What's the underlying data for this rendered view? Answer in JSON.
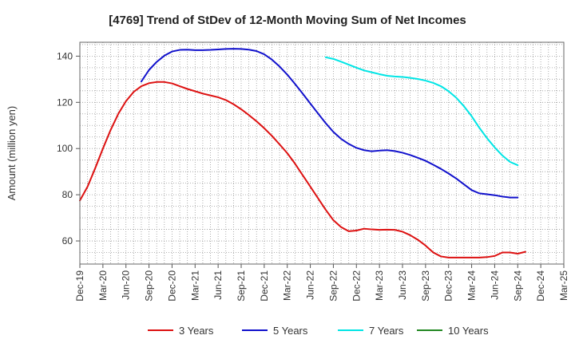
{
  "chart_data": {
    "type": "line",
    "title": "[4769]  Trend of StDev of 12-Month Moving Sum of Net Incomes",
    "ylabel": "Amount (million yen)",
    "xlabel": "",
    "ylim": [
      50,
      146
    ],
    "yticks": [
      60,
      80,
      100,
      120,
      140
    ],
    "x_start_month": "2019-12",
    "x_end_month": "2025-03",
    "x_tick_labels": [
      "Dec-19",
      "Mar-20",
      "Jun-20",
      "Sep-20",
      "Dec-20",
      "Mar-21",
      "Jun-21",
      "Sep-21",
      "Dec-21",
      "Mar-22",
      "Jun-22",
      "Sep-22",
      "Dec-22",
      "Mar-23",
      "Jun-23",
      "Sep-23",
      "Dec-23",
      "Mar-24",
      "Jun-24",
      "Sep-24",
      "Dec-24",
      "Mar-25"
    ],
    "grid": true,
    "legend_position": "bottom",
    "series": [
      {
        "name": "3 Years",
        "color": "#dd1111",
        "start_month": "2019-12",
        "values": [
          77.5,
          83.5,
          91.5,
          100,
          108,
          115,
          120.5,
          124.5,
          127,
          128.3,
          128.8,
          128.8,
          128.2,
          127,
          125.8,
          124.8,
          123.8,
          123,
          122.2,
          121,
          119.2,
          117,
          114.5,
          111.8,
          108.8,
          105.5,
          101.8,
          98,
          93.5,
          88.5,
          83.5,
          78.5,
          73.5,
          69,
          66,
          64.2,
          64.5,
          65.3,
          65,
          64.8,
          64.9,
          64.8,
          64,
          62.5,
          60.5,
          58,
          55,
          53.3,
          52.8,
          52.8,
          52.8,
          52.8,
          52.8,
          53,
          53.5,
          55,
          55,
          54.5,
          55.3
        ]
      },
      {
        "name": "5 Years",
        "color": "#1111cc",
        "start_month": "2020-08",
        "values": [
          129,
          134,
          137.5,
          140.2,
          142,
          142.7,
          142.8,
          142.6,
          142.6,
          142.7,
          142.9,
          143.1,
          143.2,
          143.1,
          142.8,
          142.2,
          140.8,
          138.5,
          135.5,
          132,
          128,
          123.8,
          119.5,
          115.2,
          111,
          107.2,
          104.2,
          102,
          100.3,
          99.3,
          98.8,
          99.1,
          99.3,
          98.9,
          98.2,
          97.2,
          96,
          94.7,
          93,
          91.2,
          89.2,
          87,
          84.5,
          82,
          80.6,
          80.2,
          79.8,
          79.2,
          78.8,
          78.8
        ]
      },
      {
        "name": "7 Years",
        "color": "#00e5e5",
        "start_month": "2022-08",
        "values": [
          139.5,
          138.8,
          137.6,
          136.3,
          135,
          133.8,
          133,
          132.2,
          131.5,
          131.2,
          131,
          130.6,
          130.1,
          129.4,
          128.4,
          127,
          124.8,
          122,
          118.3,
          114,
          109,
          104.5,
          100.5,
          97,
          94.2,
          92.8
        ]
      },
      {
        "name": "10 Years",
        "color": "#228822",
        "start_month": "2019-12",
        "values": []
      }
    ]
  }
}
